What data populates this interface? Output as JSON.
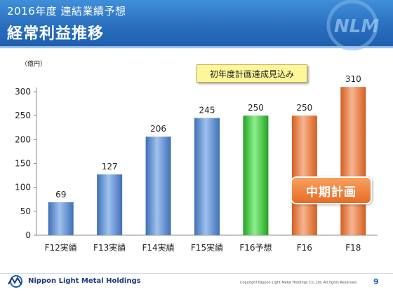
{
  "header": {
    "subtitle": "2016年度 連結業績予想",
    "title": "経常利益推移",
    "logo_text": "NLM"
  },
  "chart_data": {
    "type": "bar",
    "title": "",
    "xlabel": "",
    "ylabel": "（億円）",
    "ylim": [
      0,
      300
    ],
    "yticks": [
      0,
      50,
      100,
      150,
      200,
      250,
      300
    ],
    "grid": false,
    "categories": [
      "F12実績",
      "F13実績",
      "F14実績",
      "F15実績",
      "F16予想",
      "F16",
      "F18"
    ],
    "values": [
      69,
      127,
      206,
      245,
      250,
      250,
      310
    ],
    "data_labels": [
      "69",
      "127",
      "206",
      "245",
      "250",
      "250",
      "310"
    ],
    "bar_groups": [
      "actual",
      "actual",
      "actual",
      "actual",
      "forecast",
      "plan",
      "plan"
    ],
    "colors": {
      "actual": "#5b8fd8",
      "forecast": "#3ccb3c",
      "plan": "#ee7a3a"
    },
    "annotations": {
      "callout": "初年度計画達成見込み",
      "plan_badge": "中期計画"
    }
  },
  "footer": {
    "company": "Nippon Light Metal Holdings",
    "copyright": "Copyright Nippon Light Metal Holdings Co.,Ltd. All rights Reserved.",
    "page_number": "9"
  }
}
